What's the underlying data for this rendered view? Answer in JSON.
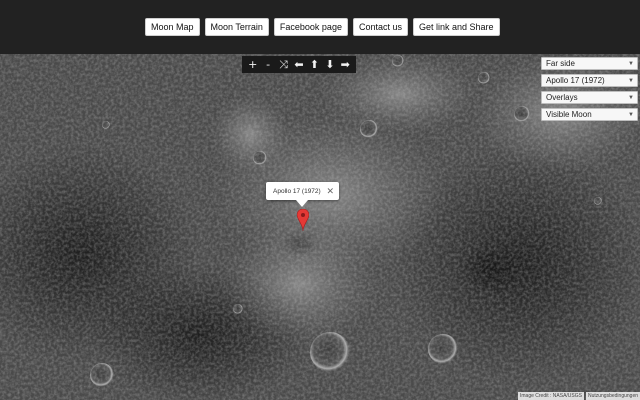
{
  "nav": {
    "moon_map": "Moon Map",
    "moon_terrain": "Moon Terrain",
    "facebook_page": "Facebook page",
    "contact_us": "Contact us",
    "get_link": "Get link and Share"
  },
  "controls": {
    "zoom_in": "+",
    "zoom_out": "-",
    "random": "⤨",
    "left": "⬅",
    "up": "⬆",
    "down": "⬇",
    "right": "➡"
  },
  "dropdowns": {
    "side": "Far side",
    "mission": "Apollo 17 (1972)",
    "overlays": "Overlays",
    "layer": "Visible Moon"
  },
  "marker": {
    "info_title": "Apollo 17 (1972)",
    "pin_color": "#e53935"
  },
  "credits": {
    "image_credit": "Image Credit : NASA/USGS",
    "terms": "Nutzungsbedingungen"
  },
  "colors": {
    "topbar": "#222222",
    "control_bar": "#1a1a1a"
  }
}
